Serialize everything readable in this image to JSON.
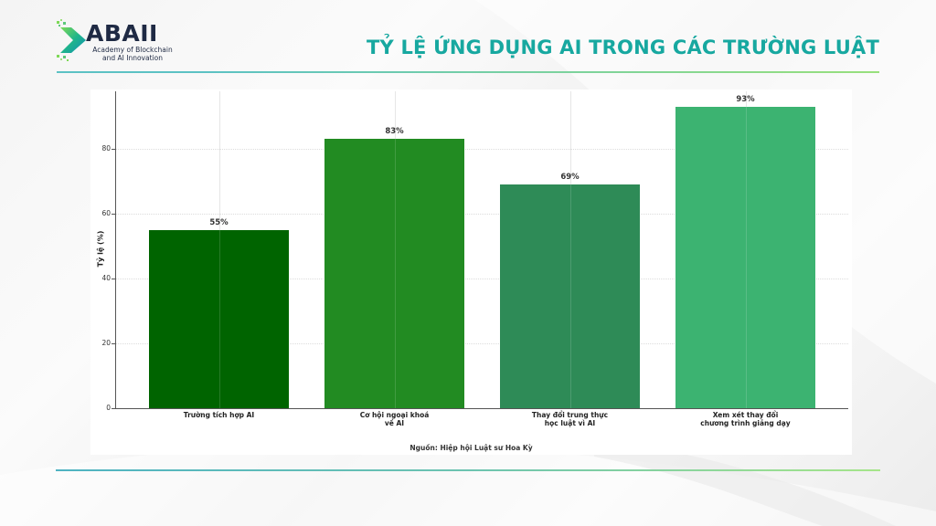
{
  "logo": {
    "name": "ABAII",
    "subtitle_line1": "Academy of Blockchain",
    "subtitle_line2": "and AI Innovation"
  },
  "slide": {
    "title": "TỶ LỆ ỨNG DỤNG AI TRONG CÁC TRƯỜNG LUẬT"
  },
  "colors": {
    "title": "#17a8a0",
    "logo_text": "#1f2a44",
    "bar_1": "#006400",
    "bar_2": "#228B22",
    "bar_3": "#2E8B57",
    "bar_4": "#3CB371"
  },
  "chart_data": {
    "type": "bar",
    "title": "",
    "xlabel": "",
    "ylabel": "Tỷ lệ (%)",
    "ylim": [
      0,
      98
    ],
    "yticks": [
      0,
      20,
      40,
      60,
      80
    ],
    "grid": true,
    "legend": null,
    "categories": [
      "Trường tích hợp AI",
      "Cơ hội ngoại khoá\nvề AI",
      "Thay đổi trung thực\nhọc luật vì AI",
      "Xem xét thay đổi\nchương trình giảng dạy"
    ],
    "values": [
      55,
      83,
      69,
      93
    ],
    "value_labels": [
      "55%",
      "83%",
      "69%",
      "93%"
    ],
    "bar_colors": [
      "#006400",
      "#228B22",
      "#2E8B57",
      "#3CB371"
    ],
    "annotation": "Nguồn: Hiệp hội Luật sư Hoa Kỳ"
  },
  "axis": {
    "ytick_labels": [
      "0",
      "20",
      "40",
      "60",
      "80"
    ]
  }
}
